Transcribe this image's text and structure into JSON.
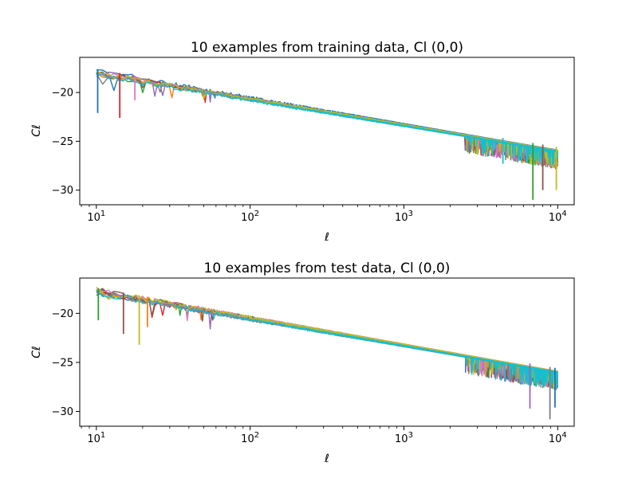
{
  "chart_data": [
    {
      "type": "line",
      "title": "10 examples from training data, Cl (0,0)",
      "xlabel": "ℓ",
      "ylabel": "Cℓ",
      "xscale": "log",
      "xlim": [
        7.8,
        12800
      ],
      "ylim": [
        -31.5,
        -16.4
      ],
      "xticks": [
        10,
        100,
        1000,
        10000
      ],
      "xtick_labels": [
        {
          "base": "10",
          "exp": "1"
        },
        {
          "base": "10",
          "exp": "2"
        },
        {
          "base": "10",
          "exp": "3"
        },
        {
          "base": "10",
          "exp": "4"
        }
      ],
      "yticks": [
        -20,
        -25,
        -30
      ],
      "ytick_labels": [
        "−20",
        "−25",
        "−30"
      ],
      "n_series": 10,
      "trend": {
        "x": [
          10,
          10000
        ],
        "y": [
          -18.0,
          -26.0
        ]
      },
      "notable_dips": [
        {
          "x": 10.2,
          "y": -22.1
        },
        {
          "x": 14.2,
          "y": -22.6
        },
        {
          "x": 17.8,
          "y": -20.8
        },
        {
          "x": 4400,
          "y": -27.3
        },
        {
          "x": 6900,
          "y": -31.0
        },
        {
          "x": 8000,
          "y": -30.0
        },
        {
          "x": 9800,
          "y": -30.0
        }
      ]
    },
    {
      "type": "line",
      "title": "10 examples from test data, Cl (0,0)",
      "xlabel": "ℓ",
      "ylabel": "Cℓ",
      "xscale": "log",
      "xlim": [
        7.8,
        12800
      ],
      "ylim": [
        -31.5,
        -16.4
      ],
      "xticks": [
        10,
        100,
        1000,
        10000
      ],
      "xtick_labels": [
        {
          "base": "10",
          "exp": "1"
        },
        {
          "base": "10",
          "exp": "2"
        },
        {
          "base": "10",
          "exp": "3"
        },
        {
          "base": "10",
          "exp": "4"
        }
      ],
      "yticks": [
        -20,
        -25,
        -30
      ],
      "ytick_labels": [
        "−20",
        "−25",
        "−30"
      ],
      "n_series": 10,
      "trend": {
        "x": [
          10,
          10000
        ],
        "y": [
          -17.8,
          -26.0
        ]
      },
      "notable_dips": [
        {
          "x": 10.3,
          "y": -20.7
        },
        {
          "x": 15.0,
          "y": -22.1
        },
        {
          "x": 19.0,
          "y": -23.2
        },
        {
          "x": 21.5,
          "y": -21.4
        },
        {
          "x": 6600,
          "y": -29.7
        },
        {
          "x": 8900,
          "y": -30.8
        },
        {
          "x": 9600,
          "y": -29.6
        }
      ]
    }
  ],
  "colors": [
    "#1f77b4",
    "#ff7f0e",
    "#2ca02c",
    "#d62728",
    "#9467bd",
    "#8c564b",
    "#e377c2",
    "#7f7f7f",
    "#bcbd22",
    "#17becf"
  ]
}
